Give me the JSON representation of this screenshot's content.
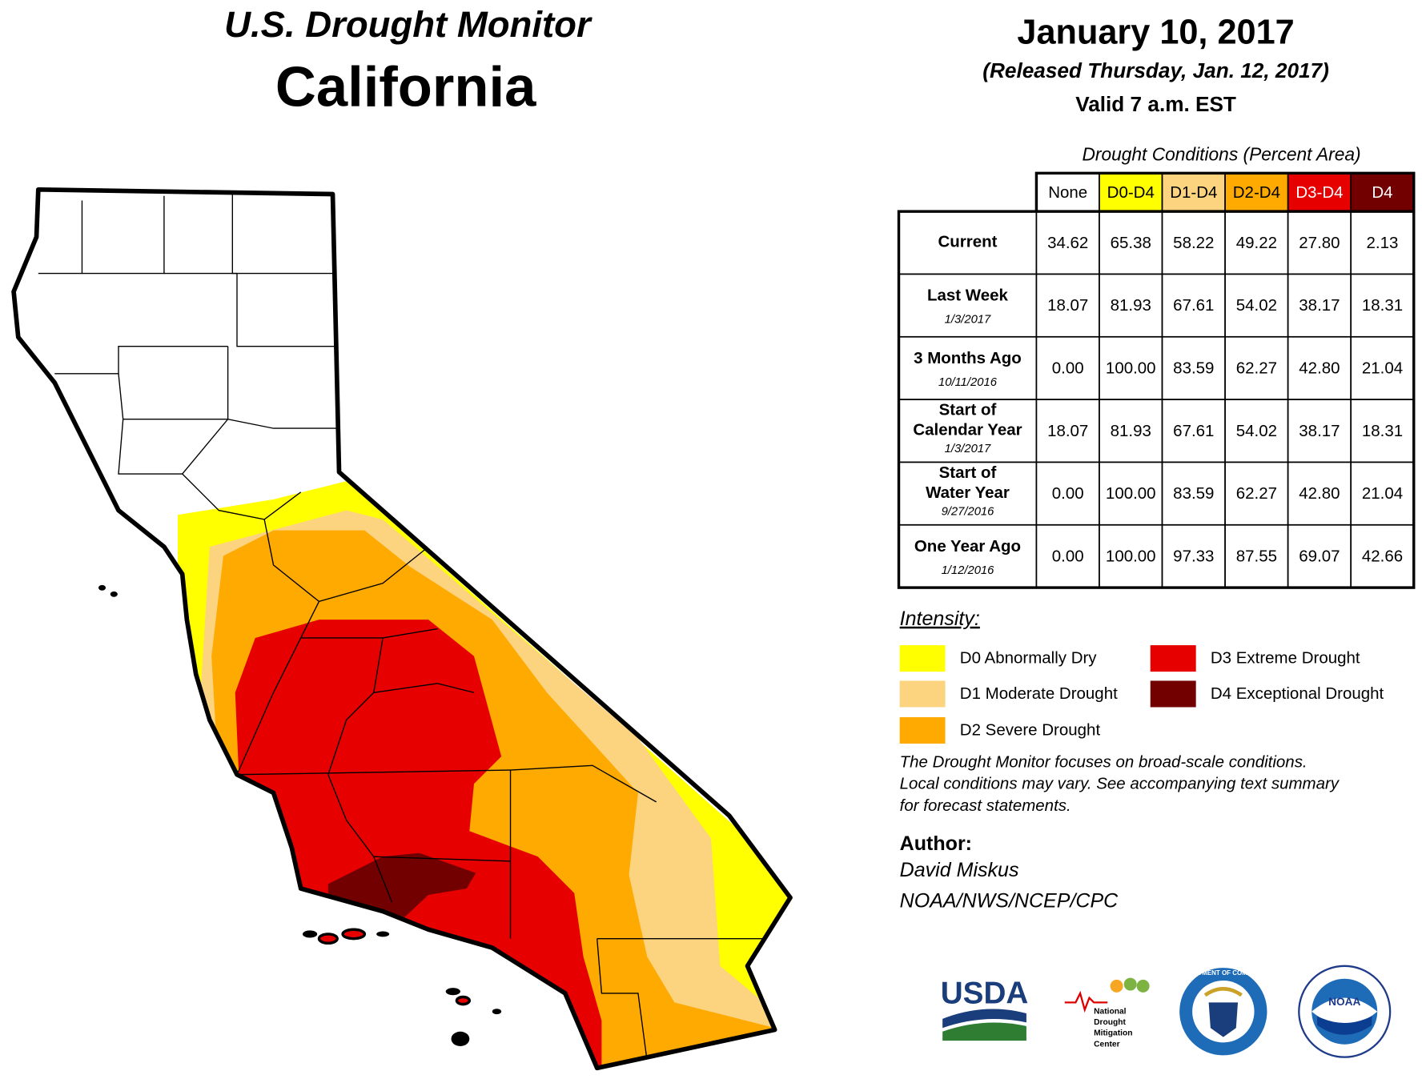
{
  "header": {
    "title": "U.S. Drought Monitor",
    "state": "California",
    "date": "January 10, 2017",
    "released": "(Released Thursday, Jan. 12, 2017)",
    "valid": "Valid 7 a.m. EST"
  },
  "table": {
    "caption": "Drought Conditions (Percent Area)",
    "columns": [
      {
        "label": "None",
        "color": "#ffffff",
        "text_color": "#000000"
      },
      {
        "label": "D0-D4",
        "color": "#ffff00",
        "text_color": "#000000"
      },
      {
        "label": "D1-D4",
        "color": "#fcd37f",
        "text_color": "#000000"
      },
      {
        "label": "D2-D4",
        "color": "#ffaa00",
        "text_color": "#000000"
      },
      {
        "label": "D3-D4",
        "color": "#e60000",
        "text_color": "#ffffff"
      },
      {
        "label": "D4",
        "color": "#730000",
        "text_color": "#ffffff"
      }
    ],
    "rows": [
      {
        "label": [
          "Current"
        ],
        "values": [
          "34.62",
          "65.38",
          "58.22",
          "49.22",
          "27.80",
          "2.13"
        ]
      },
      {
        "label": [
          "Last Week"
        ],
        "date": "1/3/2017",
        "values": [
          "18.07",
          "81.93",
          "67.61",
          "54.02",
          "38.17",
          "18.31"
        ]
      },
      {
        "label": [
          "3 Months Ago"
        ],
        "date": "10/11/2016",
        "values": [
          "0.00",
          "100.00",
          "83.59",
          "62.27",
          "42.80",
          "21.04"
        ]
      },
      {
        "label": [
          "Start of",
          "Calendar Year"
        ],
        "date": "1/3/2017",
        "values": [
          "18.07",
          "81.93",
          "67.61",
          "54.02",
          "38.17",
          "18.31"
        ]
      },
      {
        "label": [
          "Start of",
          "Water Year"
        ],
        "date": "9/27/2016",
        "values": [
          "0.00",
          "100.00",
          "83.59",
          "62.27",
          "42.80",
          "21.04"
        ]
      },
      {
        "label": [
          "One Year Ago"
        ],
        "date": "1/12/2016",
        "values": [
          "0.00",
          "100.00",
          "97.33",
          "87.55",
          "69.07",
          "42.66"
        ]
      }
    ]
  },
  "legend": {
    "title": "Intensity:",
    "items": [
      {
        "label": "D0 Abnormally Dry",
        "color": "#ffff00"
      },
      {
        "label": "D1 Moderate Drought",
        "color": "#fcd37f"
      },
      {
        "label": "D2 Severe Drought",
        "color": "#ffaa00"
      },
      {
        "label": "D3 Extreme Drought",
        "color": "#e60000"
      },
      {
        "label": "D4 Exceptional Drought",
        "color": "#730000"
      }
    ]
  },
  "note": [
    "The Drought Monitor focuses on broad-scale conditions.",
    "Local conditions may vary. See accompanying text summary",
    "for forecast statements."
  ],
  "author": {
    "heading": "Author:",
    "name": "David Miskus",
    "org": "NOAA/NWS/NCEP/CPC"
  },
  "logos": {
    "usda": "USDA",
    "ndmc": [
      "National",
      "Drought",
      "Mitigation",
      "Center"
    ],
    "commerce": "DEPARTMENT OF COMMERCE",
    "noaa": "NOAA"
  }
}
